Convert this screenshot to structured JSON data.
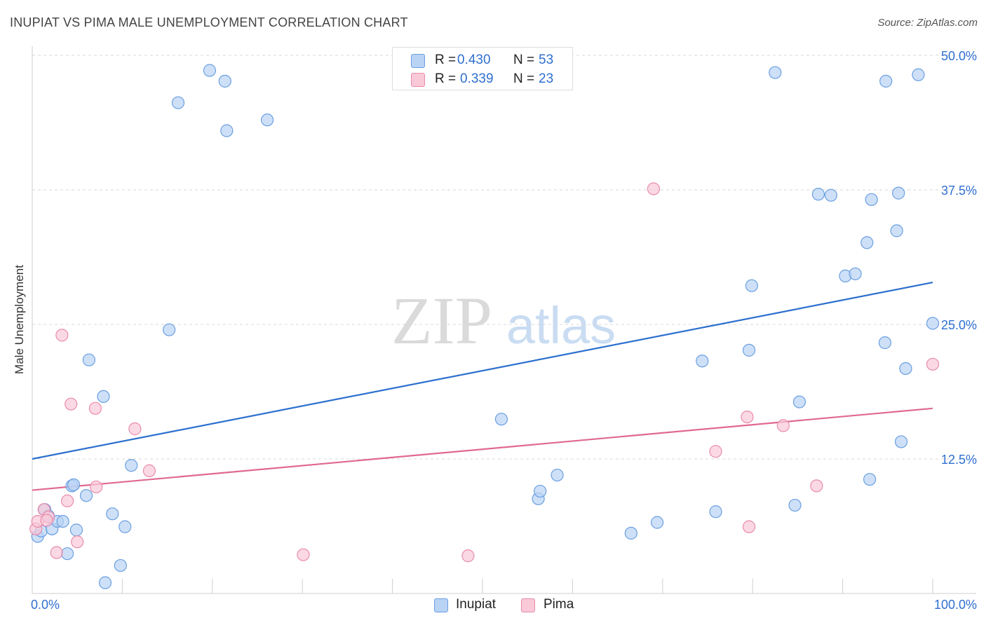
{
  "header": {
    "title": "INUPIAT VS PIMA MALE UNEMPLOYMENT CORRELATION CHART",
    "source": "Source: ZipAtlas.com"
  },
  "watermark": {
    "zip": "ZIP",
    "atlas": "atlas"
  },
  "legend": {
    "r_label": "R =",
    "n_label": "N =",
    "series": [
      {
        "name": "Inupiat",
        "r": "0.430",
        "n": "53",
        "fill": "#b9d3f5",
        "stroke": "#6a9fe0"
      },
      {
        "name": "Pima",
        "r": "0.339",
        "n": "23",
        "fill": "#f9c9d8",
        "stroke": "#e98bab"
      }
    ]
  },
  "colors": {
    "accent_text": "#2f6fd0",
    "inupiat_line": "#2c6fce",
    "pima_line": "#e06892"
  },
  "chart_data": {
    "type": "scatter",
    "title": "INUPIAT VS PIMA MALE UNEMPLOYMENT CORRELATION CHART",
    "xlabel": "",
    "ylabel": "Male Unemployment",
    "xlim": [
      0,
      100
    ],
    "ylim": [
      0,
      50
    ],
    "x_tick_labels": [
      "0.0%",
      "100.0%"
    ],
    "y_ticks": [
      12.5,
      25.0,
      37.5,
      50.0
    ],
    "y_tick_labels": [
      "12.5%",
      "25.0%",
      "37.5%",
      "50.0%"
    ],
    "grid": "horizontal dashed",
    "legend_position": "top-center",
    "series": [
      {
        "name": "Inupiat",
        "trend": [
          [
            0,
            12.5
          ],
          [
            100,
            28.9
          ]
        ],
        "points": [
          [
            0.6,
            5.3
          ],
          [
            1.0,
            5.8
          ],
          [
            1.4,
            7.8
          ],
          [
            1.8,
            7.2
          ],
          [
            2.2,
            6.0
          ],
          [
            2.8,
            6.7
          ],
          [
            3.4,
            6.7
          ],
          [
            3.9,
            3.7
          ],
          [
            4.4,
            10.0
          ],
          [
            4.6,
            10.1
          ],
          [
            4.9,
            5.9
          ],
          [
            6.0,
            9.1
          ],
          [
            6.3,
            21.7
          ],
          [
            7.9,
            18.3
          ],
          [
            8.1,
            1.0
          ],
          [
            8.9,
            7.4
          ],
          [
            9.8,
            2.6
          ],
          [
            10.3,
            6.2
          ],
          [
            11.0,
            11.9
          ],
          [
            16.2,
            45.6
          ],
          [
            15.2,
            24.5
          ],
          [
            19.7,
            48.6
          ],
          [
            21.4,
            47.6
          ],
          [
            21.6,
            43.0
          ],
          [
            26.1,
            44.0
          ],
          [
            52.1,
            16.2
          ],
          [
            56.2,
            8.8
          ],
          [
            56.4,
            9.5
          ],
          [
            58.3,
            11.0
          ],
          [
            66.5,
            5.6
          ],
          [
            69.4,
            6.6
          ],
          [
            74.4,
            21.6
          ],
          [
            75.9,
            7.6
          ],
          [
            79.6,
            22.6
          ],
          [
            79.9,
            28.6
          ],
          [
            82.5,
            48.4
          ],
          [
            84.7,
            8.2
          ],
          [
            85.2,
            17.8
          ],
          [
            87.3,
            37.1
          ],
          [
            88.7,
            37.0
          ],
          [
            90.3,
            29.5
          ],
          [
            91.4,
            29.7
          ],
          [
            92.7,
            32.6
          ],
          [
            93.0,
            10.6
          ],
          [
            93.2,
            36.6
          ],
          [
            94.7,
            23.3
          ],
          [
            94.8,
            47.6
          ],
          [
            96.0,
            33.7
          ],
          [
            96.2,
            37.2
          ],
          [
            96.5,
            14.1
          ],
          [
            97.0,
            20.9
          ],
          [
            98.4,
            48.2
          ],
          [
            100.0,
            25.1
          ]
        ]
      },
      {
        "name": "Pima",
        "trend": [
          [
            0,
            9.6
          ],
          [
            100,
            17.2
          ]
        ],
        "points": [
          [
            0.4,
            6.0
          ],
          [
            0.6,
            6.7
          ],
          [
            1.3,
            7.8
          ],
          [
            1.8,
            7.1
          ],
          [
            2.7,
            3.8
          ],
          [
            3.3,
            24.0
          ],
          [
            3.9,
            8.6
          ],
          [
            4.3,
            17.6
          ],
          [
            5.0,
            4.8
          ],
          [
            7.0,
            17.2
          ],
          [
            7.1,
            9.9
          ],
          [
            11.4,
            15.3
          ],
          [
            13.0,
            11.4
          ],
          [
            30.1,
            3.6
          ],
          [
            48.4,
            3.5
          ],
          [
            69.0,
            37.6
          ],
          [
            75.9,
            13.2
          ],
          [
            79.4,
            16.4
          ],
          [
            79.6,
            6.2
          ],
          [
            83.4,
            15.6
          ],
          [
            87.1,
            10.0
          ],
          [
            100.0,
            21.3
          ],
          [
            1.6,
            6.8
          ]
        ]
      }
    ]
  }
}
